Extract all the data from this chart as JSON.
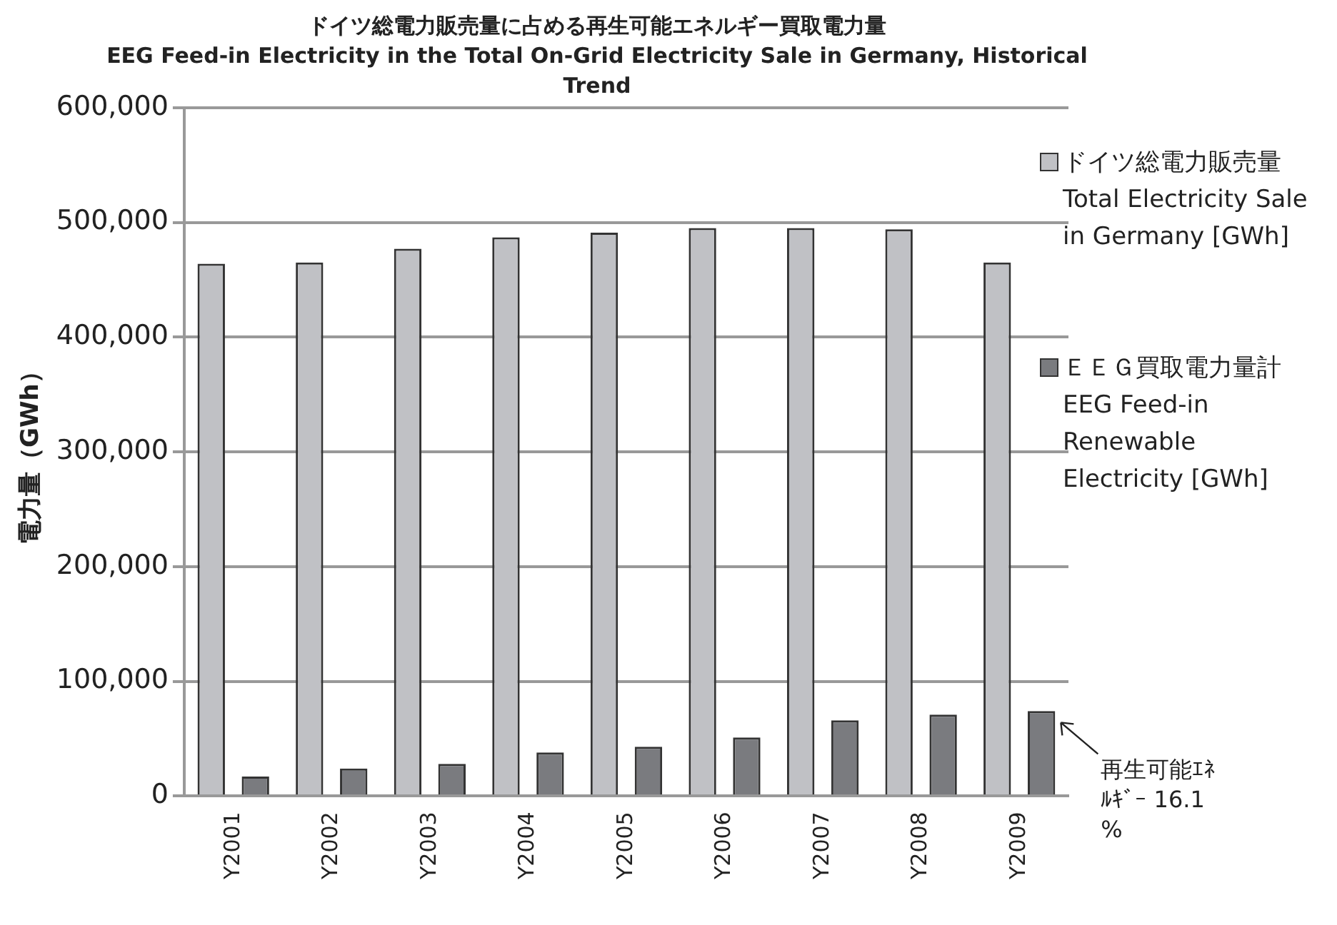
{
  "chart_data": {
    "type": "bar",
    "title": "ドイツ総電力販売量に占める再生可能エネルギー買取電力量",
    "subtitle": "EEG Feed-in Electricity in the Total On-Grid Electricity Sale in Germany, Historical Trend",
    "ylabel": "電力量（GWh）",
    "categories": [
      "Y2001",
      "Y2002",
      "Y2003",
      "Y2004",
      "Y2005",
      "Y2006",
      "Y2007",
      "Y2008",
      "Y2009"
    ],
    "series": [
      {
        "name": "ドイツ総電力販売量 Total Electricity Sale in Germany [GWh]",
        "color": "#c0c1c5",
        "values": [
          464000,
          465000,
          477000,
          487000,
          491000,
          495000,
          495000,
          494000,
          465000
        ]
      },
      {
        "name": "ＥＥＧ買取電力量計 EEG Feed-in Renewable Electricity [GWh]",
        "color": "#7a7b7f",
        "values": [
          17000,
          24000,
          28000,
          38000,
          43000,
          51000,
          66000,
          71000,
          74000
        ]
      }
    ],
    "ylim": [
      0,
      600000
    ],
    "yticks": [
      {
        "value": 0,
        "label": "0"
      },
      {
        "value": 100000,
        "label": "100,000"
      },
      {
        "value": 200000,
        "label": "200,000"
      },
      {
        "value": 300000,
        "label": "300,000"
      },
      {
        "value": 400000,
        "label": "400,000"
      },
      {
        "value": 500000,
        "label": "500,000"
      },
      {
        "value": 600000,
        "label": "600,000"
      }
    ],
    "grid": "y",
    "legend": "right",
    "annotations": [
      "再生可能ｴﾈﾙｷﾞｰ 16.1%"
    ]
  }
}
